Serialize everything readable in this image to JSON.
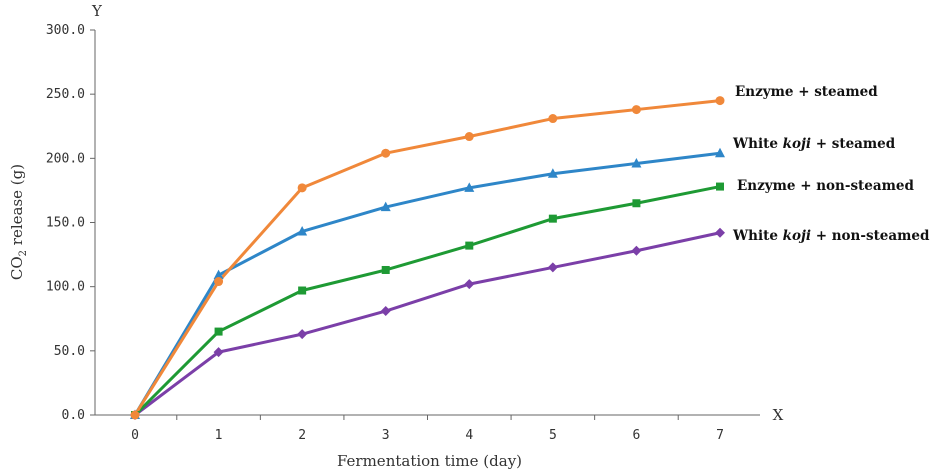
{
  "chart_data": {
    "type": "line",
    "xlabel": "Fermentation time (day)",
    "ylabel_main": "CO",
    "ylabel_sub": "2",
    "ylabel_rest": " release (g)",
    "x_axis_letter": "X",
    "y_axis_letter": "Y",
    "x": [
      0,
      1,
      2,
      3,
      4,
      5,
      6,
      7
    ],
    "xlim": [
      -0.5,
      7.2
    ],
    "ylim": [
      0,
      300
    ],
    "y_ticks": [
      "0.0",
      "50.0",
      "100.0",
      "150.0",
      "200.0",
      "250.0",
      "300.0"
    ],
    "x_ticks": [
      "0",
      "1",
      "2",
      "3",
      "4",
      "5",
      "6",
      "7"
    ],
    "grid": false,
    "series": [
      {
        "id": "enzyme-steamed",
        "label_pre": "Enzyme + steamed",
        "label_ital": "",
        "label_post": "",
        "color": "#F0883A",
        "marker": "circle",
        "values": [
          0,
          104,
          177,
          204,
          217,
          231,
          238,
          245
        ]
      },
      {
        "id": "koji-steamed",
        "label_pre": "White ",
        "label_ital": "koji",
        "label_post": " +  steamed",
        "color": "#2E86C8",
        "marker": "triangle",
        "values": [
          0,
          109,
          143,
          162,
          177,
          188,
          196,
          204
        ]
      },
      {
        "id": "enzyme-nonsteamed",
        "label_pre": "Enzyme + non-steamed",
        "label_ital": "",
        "label_post": "",
        "color": "#1E9A34",
        "marker": "square",
        "values": [
          0,
          65,
          97,
          113,
          132,
          153,
          165,
          178
        ]
      },
      {
        "id": "koji-nonsteamed",
        "label_pre": "White ",
        "label_ital": "koji",
        "label_post": " + non-steamed",
        "color": "#7B3FA8",
        "marker": "diamond",
        "values": [
          0,
          49,
          63,
          81,
          102,
          115,
          128,
          142
        ]
      }
    ]
  }
}
